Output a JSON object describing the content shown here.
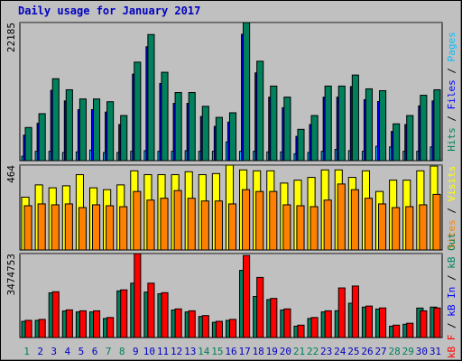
{
  "chart_data": [
    {
      "type": "bar",
      "title": "Daily usage for January 2017",
      "categories": [
        "1",
        "2",
        "3",
        "4",
        "5",
        "6",
        "7",
        "8",
        "9",
        "10",
        "11",
        "12",
        "13",
        "14",
        "15",
        "16",
        "17",
        "18",
        "19",
        "20",
        "21",
        "22",
        "23",
        "24",
        "25",
        "26",
        "27",
        "28",
        "29",
        "30",
        "31"
      ],
      "category_colors": [
        "#00805c",
        "#0000c0",
        "#0000c0",
        "#0000c0",
        "#0000c0",
        "#0000c0",
        "#00805c",
        "#00805c",
        "#0000c0",
        "#0000c0",
        "#0000c0",
        "#0000c0",
        "#0000c0",
        "#00805c",
        "#00805c",
        "#0000c0",
        "#0000c0",
        "#0000c0",
        "#0000c0",
        "#0000c0",
        "#00805c",
        "#00805c",
        "#0000c0",
        "#0000c0",
        "#0000c0",
        "#0000c0",
        "#0000c0",
        "#00805c",
        "#00805c",
        "#0000c0",
        "#0000c0"
      ],
      "legend_separator": " / ",
      "ylim": [
        0,
        22185
      ],
      "yticks": [
        22185
      ],
      "series": [
        {
          "name": "Hits",
          "color": "#00805c",
          "values": [
            5324,
            7543,
            13163,
            11388,
            9909,
            9909,
            9466,
            7247,
            15825,
            20262,
            14198,
            10944,
            10944,
            8726,
            6951,
            7691,
            22185,
            15973,
            11980,
            10205,
            5029,
            7247,
            11980,
            11980,
            13755,
            11536,
            11240,
            5916,
            7247,
            10501,
            11388
          ]
        },
        {
          "name": "Files",
          "color": "#0000ff",
          "values": [
            4100,
            6000,
            11300,
            9600,
            8200,
            8200,
            7800,
            5800,
            13900,
            18300,
            12400,
            9200,
            9200,
            7100,
            5500,
            6200,
            20300,
            14100,
            10200,
            8500,
            3900,
            5800,
            10200,
            10200,
            11900,
            9800,
            9500,
            4700,
            5800,
            8800,
            9600
          ]
        },
        {
          "name": "Pages",
          "color": "#00c0ff",
          "values": [
            700,
            1500,
            1500,
            1300,
            1400,
            1700,
            1300,
            1300,
            1500,
            1600,
            1500,
            1500,
            1600,
            1500,
            1500,
            3000,
            1500,
            1500,
            1400,
            1400,
            1100,
            1300,
            1500,
            1800,
            1600,
            1500,
            2300,
            2200,
            1500,
            1500,
            2200
          ]
        }
      ]
    },
    {
      "type": "bar",
      "legend_separator": " / ",
      "ylim": [
        0,
        464
      ],
      "yticks": [
        464
      ],
      "series": [
        {
          "name": "Sites",
          "color": "#ff8000",
          "values": [
            242,
            252,
            247,
            252,
            232,
            247,
            242,
            237,
            320,
            273,
            283,
            325,
            283,
            268,
            268,
            252,
            330,
            320,
            320,
            247,
            242,
            237,
            273,
            361,
            330,
            283,
            252,
            232,
            237,
            247,
            304
          ]
        },
        {
          "name": "Visits",
          "color": "#ffff00",
          "values": [
            289,
            356,
            340,
            351,
            412,
            340,
            330,
            356,
            433,
            412,
            412,
            412,
            428,
            412,
            418,
            464,
            438,
            433,
            433,
            366,
            382,
            397,
            438,
            438,
            397,
            433,
            320,
            382,
            382,
            433,
            459
          ]
        }
      ]
    },
    {
      "type": "bar",
      "legend_separator": " / ",
      "ylim": [
        0,
        3474753
      ],
      "yticks": [
        3474753
      ],
      "series": [
        {
          "name": "kB F",
          "color": "#ff0000",
          "values": [
            711000,
            750000,
            1895000,
            1145000,
            1106000,
            1106000,
            829000,
            1974000,
            3474753,
            2251000,
            1856000,
            1185000,
            1106000,
            908000,
            671000,
            750000,
            3396000,
            2488000,
            1619000,
            1185000,
            513000,
            829000,
            1106000,
            2053000,
            2132000,
            1303000,
            1224000,
            513000,
            592000,
            1106000,
            1224000
          ]
        },
        {
          "name": "kB In",
          "color": "#0000ff",
          "values": [
            0,
            0,
            0,
            0,
            0,
            0,
            0,
            0,
            0,
            0,
            0,
            0,
            0,
            0,
            0,
            0,
            0,
            0,
            0,
            0,
            0,
            0,
            0,
            0,
            0,
            0,
            0,
            0,
            0,
            0,
            0
          ]
        },
        {
          "name": "kB Out",
          "color": "#00805c",
          "values": [
            670000,
            710000,
            1850000,
            1100000,
            1060000,
            1060000,
            790000,
            1930000,
            2250000,
            1880000,
            1810000,
            1140000,
            1060000,
            870000,
            630000,
            710000,
            2780000,
            1700000,
            1570000,
            1140000,
            470000,
            790000,
            1060000,
            1110000,
            1420000,
            1260000,
            1180000,
            470000,
            550000,
            1220000,
            1260000
          ]
        }
      ]
    }
  ]
}
